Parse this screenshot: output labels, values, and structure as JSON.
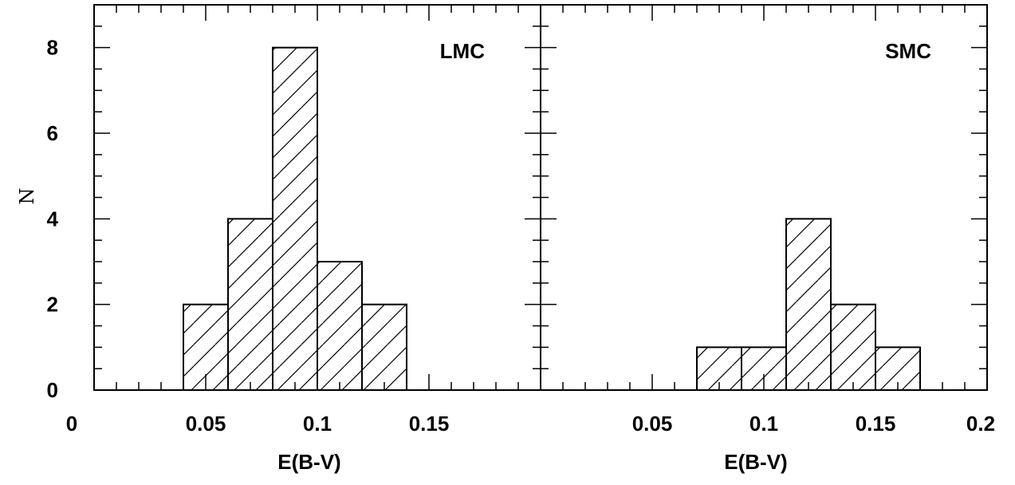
{
  "chart_data": [
    {
      "type": "bar",
      "panel_label": "LMC",
      "xlabel": "E(B-V)",
      "ylabel": "N",
      "xlim": [
        0,
        0.2
      ],
      "ylim": [
        0,
        9
      ],
      "x_tick_labels": [
        "0",
        "0.05",
        "0.1",
        "0.15"
      ],
      "y_tick_labels": [
        "0",
        "2",
        "4",
        "6",
        "8"
      ],
      "bins": [
        {
          "x0": 0.04,
          "x1": 0.06,
          "value": 2
        },
        {
          "x0": 0.06,
          "x1": 0.08,
          "value": 4
        },
        {
          "x0": 0.08,
          "x1": 0.1,
          "value": 8
        },
        {
          "x0": 0.1,
          "x1": 0.12,
          "value": 3
        },
        {
          "x0": 0.12,
          "x1": 0.14,
          "value": 2
        }
      ],
      "fill": "diagonal-hatch"
    },
    {
      "type": "bar",
      "panel_label": "SMC",
      "xlabel": "E(B-V)",
      "xlim": [
        0,
        0.2
      ],
      "ylim": [
        0,
        9
      ],
      "x_tick_labels": [
        "0.05",
        "0.1",
        "0.15",
        "0.2"
      ],
      "bins": [
        {
          "x0": 0.07,
          "x1": 0.09,
          "value": 1
        },
        {
          "x0": 0.09,
          "x1": 0.11,
          "value": 1
        },
        {
          "x0": 0.11,
          "x1": 0.13,
          "value": 4
        },
        {
          "x0": 0.13,
          "x1": 0.15,
          "value": 2
        },
        {
          "x0": 0.15,
          "x1": 0.17,
          "value": 1
        }
      ],
      "fill": "diagonal-hatch"
    }
  ]
}
